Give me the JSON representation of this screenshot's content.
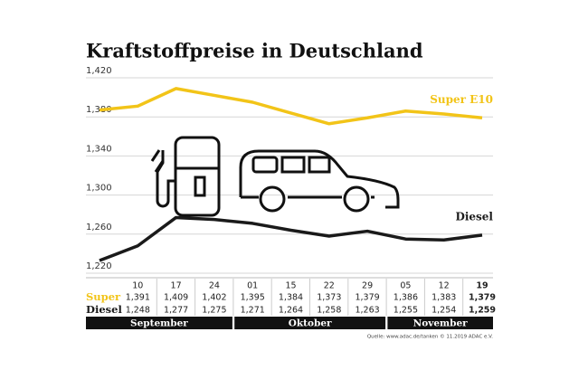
{
  "chart_data": {
    "type": "line",
    "title": "Kraftstoffpreise in Deutschland",
    "categories": [
      null,
      "10",
      "17",
      "24",
      "01",
      "15",
      "22",
      "29",
      "05",
      "12",
      "19"
    ],
    "series": [
      {
        "name": "Super E10",
        "row_label": "Super",
        "color": "#f2c418",
        "values": [
          1.387,
          1.391,
          1.409,
          1.402,
          1.395,
          1.384,
          1.373,
          1.379,
          1.386,
          1.383,
          1.379
        ],
        "value_labels": [
          null,
          "1,391",
          "1,409",
          "1,402",
          "1,395",
          "1,384",
          "1,373",
          "1,379",
          "1,386",
          "1,383",
          "1,379"
        ]
      },
      {
        "name": "Diesel",
        "row_label": "Diesel",
        "color": "#1a1a1a",
        "values": [
          1.233,
          1.248,
          1.277,
          1.275,
          1.271,
          1.264,
          1.258,
          1.263,
          1.255,
          1.254,
          1.259
        ],
        "value_labels": [
          null,
          "1,248",
          "1,277",
          "1,275",
          "1,271",
          "1,264",
          "1,258",
          "1,263",
          "1,255",
          "1,254",
          "1,259"
        ]
      }
    ],
    "months": [
      "September",
      "Oktober",
      "November"
    ],
    "ylim": [
      1.22,
      1.42
    ],
    "yticks": [
      {
        "value": 1.22,
        "label": "1,220"
      },
      {
        "value": 1.26,
        "label": "1,260"
      },
      {
        "value": 1.3,
        "label": "1,300"
      },
      {
        "value": 1.34,
        "label": "1,340"
      },
      {
        "value": 1.38,
        "label": "1,380"
      },
      {
        "value": 1.42,
        "label": "1,420"
      }
    ],
    "grid": true,
    "source": "Quelle: www.adac.de/tanken   © 11.2019  ADAC e.V."
  }
}
